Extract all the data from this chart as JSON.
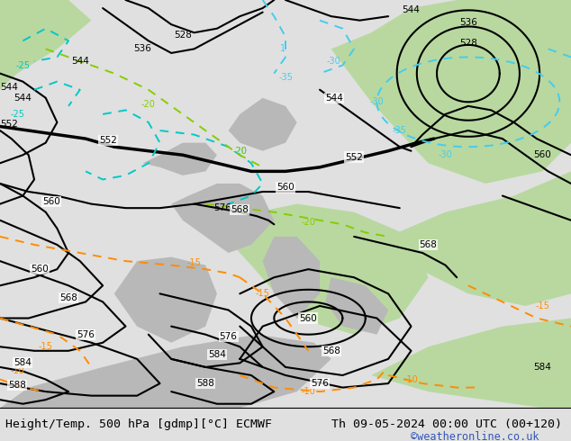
{
  "title_left": "Height/Temp. 500 hPa [gdmp][°C] ECMWF",
  "title_right": "Th 09-05-2024 00:00 UTC (00+120)",
  "credit": "©weatheronline.co.uk",
  "bg_color": "#c8cfc8",
  "green_color": "#b8d8a0",
  "gray_color": "#b8b8b8",
  "white_color": "#dce0dc",
  "bottom_bar_color": "#e0e0e0",
  "title_fontsize": 9.5,
  "credit_color": "#3355bb"
}
